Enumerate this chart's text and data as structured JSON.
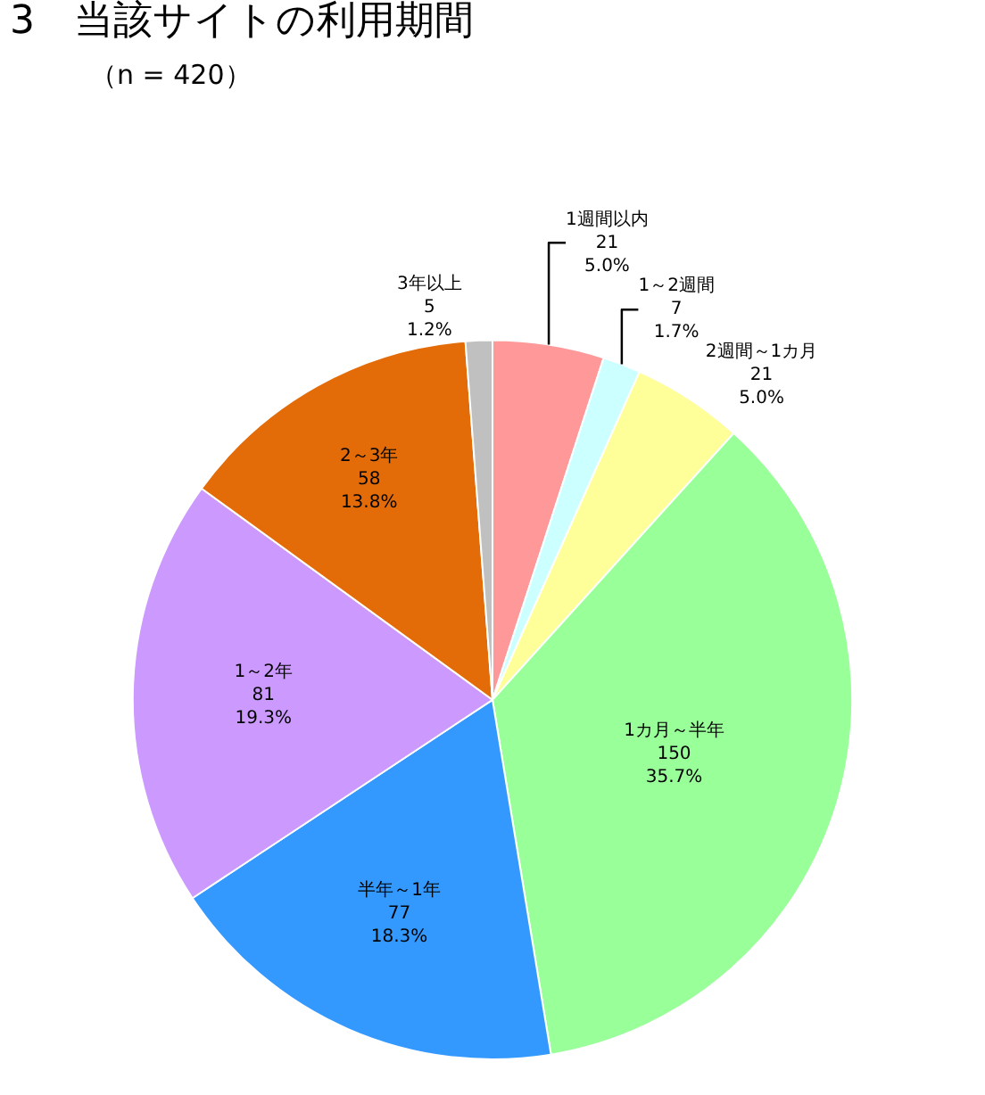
{
  "chart_data": {
    "type": "pie",
    "title": "3　当該サイトの利用期間",
    "subtitle": "（n = 420）",
    "categories": [
      "1週間以内",
      "1～2週間",
      "2週間～1カ月",
      "1カ月～半年",
      "半年～1年",
      "1～2年",
      "2～3年",
      "3年以上"
    ],
    "values": [
      5.0,
      1.7,
      5.0,
      35.7,
      18.3,
      19.3,
      13.8,
      1.2
    ],
    "value_labels": [
      "21\n5.0%",
      "7\n1.7%",
      "21\n5.0%",
      "150\n35.7%",
      "77\n18.3%",
      "81\n19.3%",
      "58\n13.8%",
      "5\n1.2%"
    ],
    "colors": [
      "#ff9999",
      "#ccffff",
      "#ffff99",
      "#99ff99",
      "#3399ff",
      "#cc99ff",
      "#e36c09",
      "#c0c0c0"
    ],
    "legend": false
  }
}
